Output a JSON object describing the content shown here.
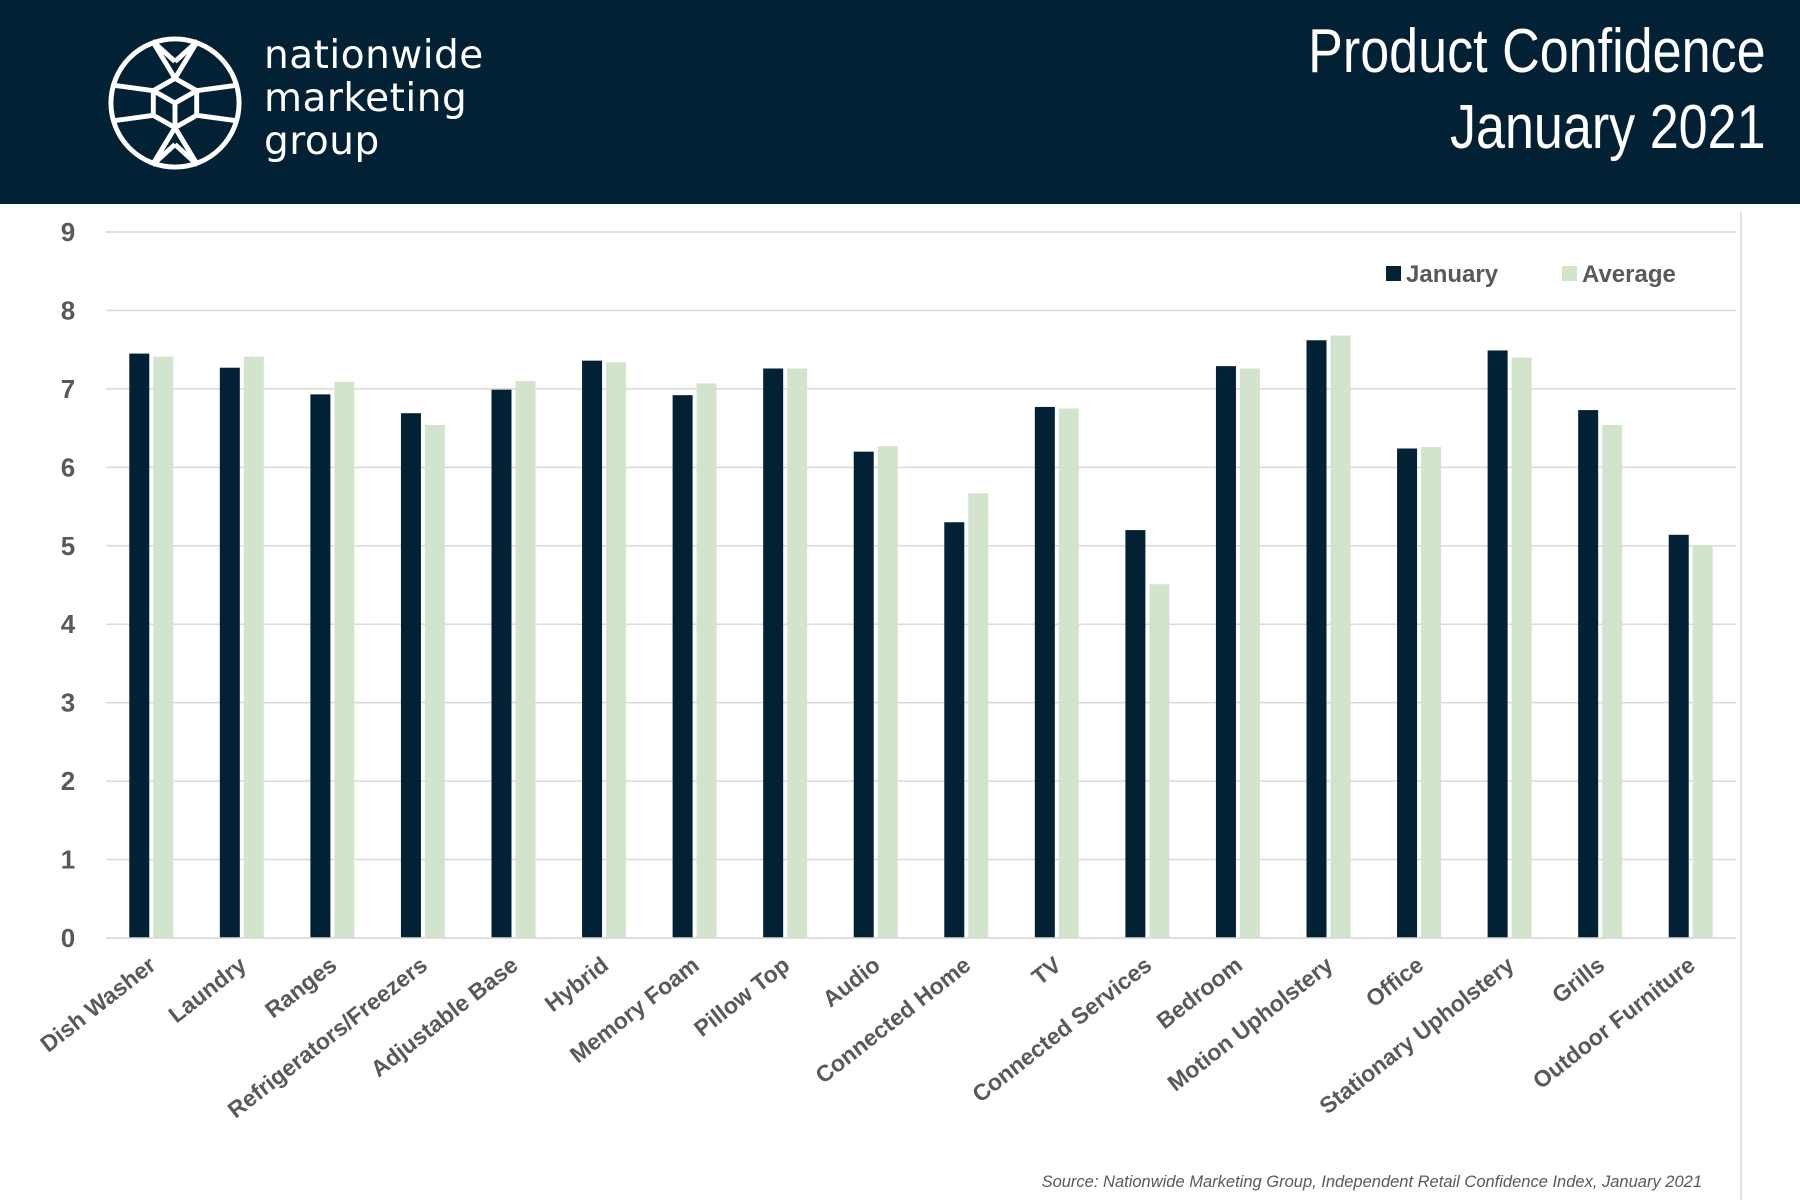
{
  "header": {
    "brand_lines": [
      "nationwide",
      "marketing",
      "group"
    ],
    "title_lines": [
      "Product Confidence",
      "January 2021"
    ],
    "logo_icon": "geometric-gem-circle-icon",
    "background_color": "#032134"
  },
  "chart_data": {
    "type": "bar",
    "title": "Product Confidence January 2021",
    "xlabel": "",
    "ylabel": "",
    "ylim": [
      0,
      9
    ],
    "yticks": [
      0,
      1,
      2,
      3,
      4,
      5,
      6,
      7,
      8,
      9
    ],
    "grid": true,
    "legend_position": "top-right",
    "categories": [
      "Dish Washer",
      "Laundry",
      "Ranges",
      "Refrigerators/Freezers",
      "Adjustable Base",
      "Hybrid",
      "Memory Foam",
      "Pillow Top",
      "Audio",
      "Connected Home",
      "TV",
      "Connected Services",
      "Bedroom",
      "Motion Upholstery",
      "Office",
      "Stationary Upholstery",
      "Grills",
      "Outdoor Furniture"
    ],
    "series": [
      {
        "name": "January",
        "color": "#032134",
        "values": [
          7.45,
          7.27,
          6.93,
          6.69,
          6.99,
          7.36,
          6.92,
          7.26,
          6.2,
          5.3,
          6.77,
          5.2,
          7.29,
          7.62,
          6.24,
          7.49,
          6.73,
          5.14
        ]
      },
      {
        "name": "Average",
        "color": "#d3e4cd",
        "values": [
          7.41,
          7.41,
          7.09,
          6.54,
          7.1,
          7.34,
          7.07,
          7.26,
          6.27,
          5.67,
          6.75,
          4.51,
          7.26,
          7.68,
          6.26,
          7.4,
          6.54,
          5.01
        ]
      }
    ]
  },
  "footer": {
    "source": "Source: Nationwide Marketing Group, Independent Retail Confidence Index, January 2021"
  }
}
